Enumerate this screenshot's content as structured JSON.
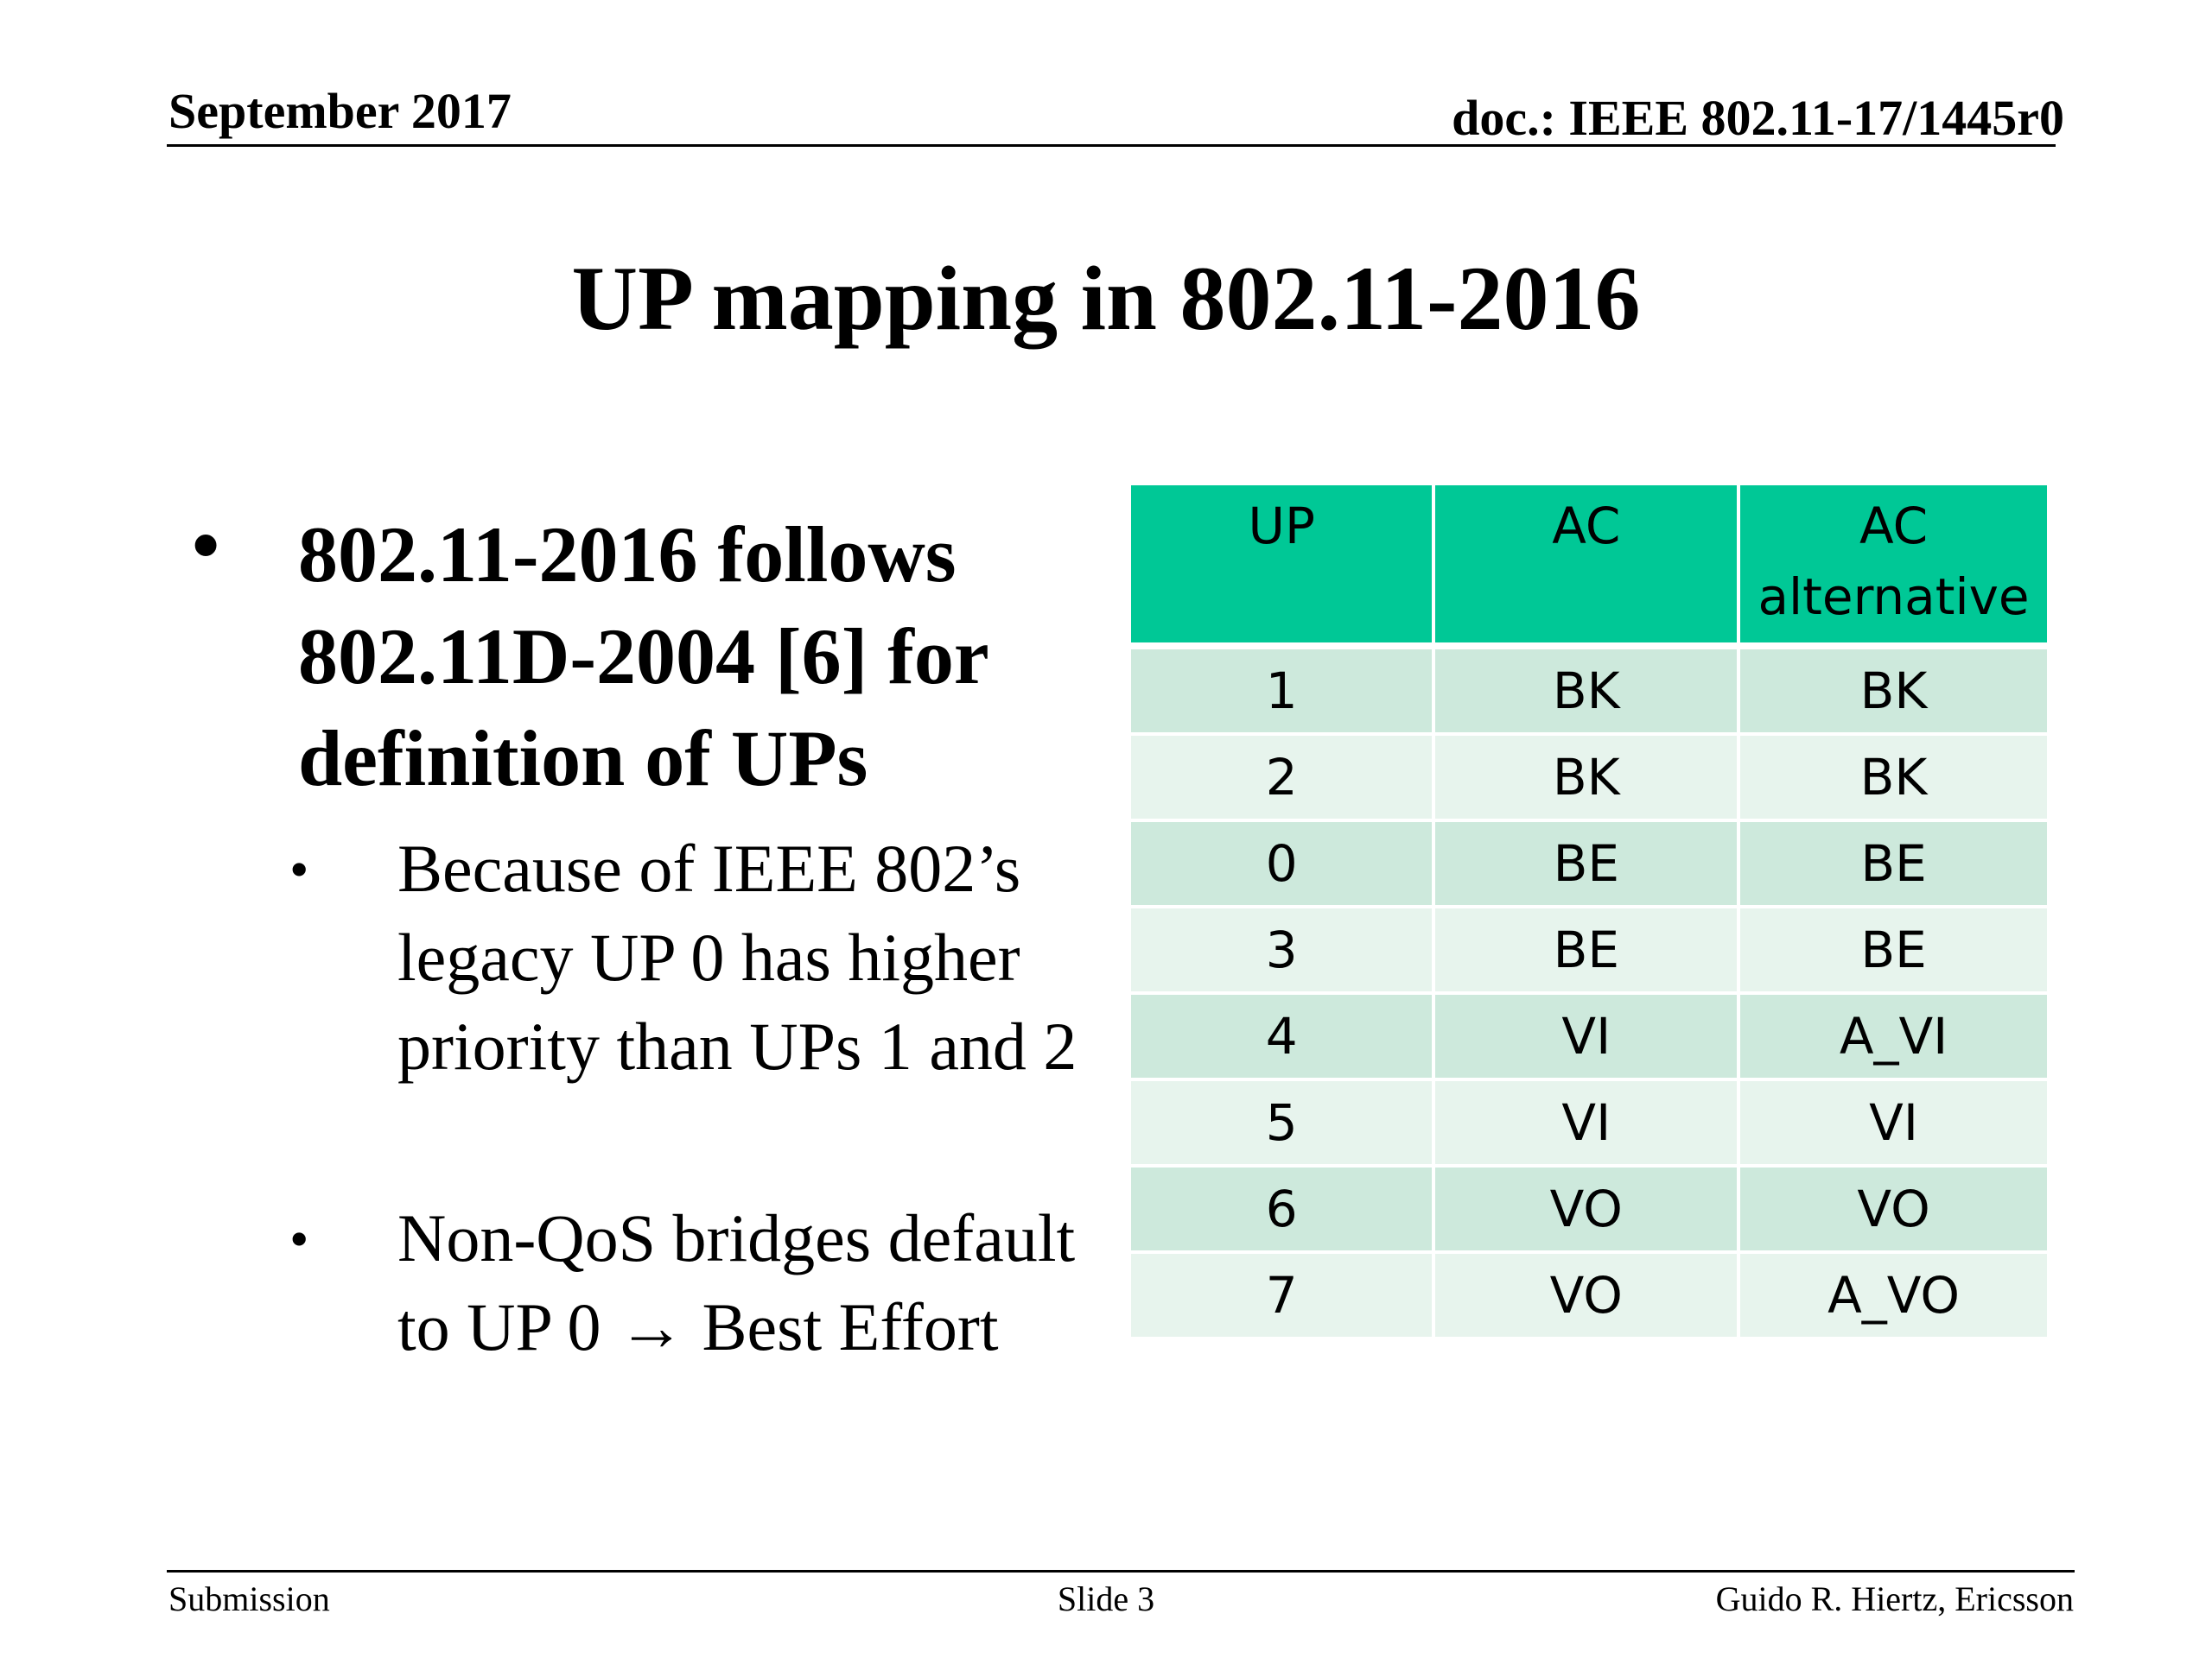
{
  "header": {
    "date": "September 2017",
    "doc": "doc.: IEEE 802.11-17/1445r0"
  },
  "title": "UP mapping in 802.11-2016",
  "bullets": {
    "main": {
      "marker": "•",
      "text": "802.11-2016 follows 802.11D-2004 [6] for definition of UPs"
    },
    "sub": [
      {
        "marker": "•",
        "text": "Because of IEEE 802’s legacy UP 0 has higher priority than UPs 1 and 2"
      },
      {
        "marker": "•",
        "text": "Non-QoS bridges default to UP 0 → Best Effort"
      }
    ]
  },
  "table": {
    "headers": [
      "UP",
      "AC",
      "AC alternative"
    ],
    "rows": [
      [
        "1",
        "BK",
        "BK"
      ],
      [
        "2",
        "BK",
        "BK"
      ],
      [
        "0",
        "BE",
        "BE"
      ],
      [
        "3",
        "BE",
        "BE"
      ],
      [
        "4",
        "VI",
        "A_VI"
      ],
      [
        "5",
        "VI",
        "VI"
      ],
      [
        "6",
        "VO",
        "VO"
      ],
      [
        "7",
        "VO",
        "A_VO"
      ]
    ],
    "colors": {
      "header": "#00c896",
      "row_odd": "#cde9dc",
      "row_even": "#e7f4ed"
    }
  },
  "footer": {
    "left": "Submission",
    "center": "Slide 3",
    "right": "Guido R. Hiertz, Ericsson"
  }
}
